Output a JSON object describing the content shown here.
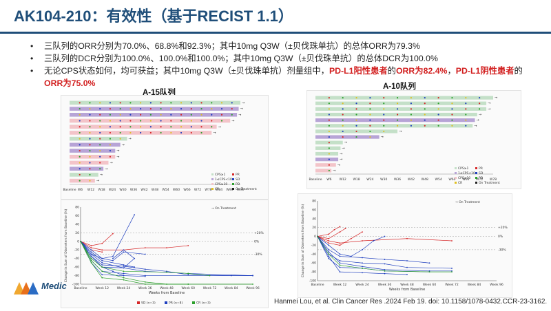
{
  "slide": {
    "title": "AK104-210：有效性（基于RECIST 1.1）",
    "bullets": [
      {
        "parts": [
          {
            "text": "三队列的ORR分别为70.0%、68.8%和92.3%；其中10mg Q3W（±贝伐珠单抗）的总体ORR为79.3%",
            "hl": false
          }
        ]
      },
      {
        "parts": [
          {
            "text": "三队列的DCR分别为100.0%、100.0%和100.0%；其中10mg Q3W（±贝伐珠单抗）的总体DCR为100.0%",
            "hl": false
          }
        ]
      },
      {
        "parts": [
          {
            "text": "无论CPS状态如何，均可获益；其中10mg Q3W（±贝伐珠单抗）剂量组中，",
            "hl": false
          },
          {
            "text": "PD-L1阳性患者",
            "hl": true
          },
          {
            "text": "的",
            "hl": false
          },
          {
            "text": "ORR为82.4%",
            "hl": true
          },
          {
            "text": "，",
            "hl": false
          },
          {
            "text": "PD-L1阴性患者",
            "hl": true
          },
          {
            "text": "的",
            "hl": false
          },
          {
            "text": "ORR为75.0%",
            "hl": true
          }
        ]
      }
    ],
    "bullet_glyph": "•",
    "citation": "Hanmei Lou, et al. Clin Cancer Res .2024 Feb 19. doi: 10.1158/1078-0432.CCR-23-3162.",
    "logo_text": "Medic"
  },
  "left_panel": {
    "cohort_title": "A-15队列",
    "swimmer": {
      "bars": [
        {
          "weeks": 101,
          "color": "#c4e0c8"
        },
        {
          "weeks": 100,
          "color": "#b7a4d6"
        },
        {
          "weeks": 99,
          "color": "#b7a4d6"
        },
        {
          "weeks": 95,
          "color": "#f3c4c9"
        },
        {
          "weeks": 87,
          "color": "#f3c4c9"
        },
        {
          "weeks": 84,
          "color": "#f3c4c9"
        },
        {
          "weeks": 34,
          "color": "#c4e0c8"
        },
        {
          "weeks": 30,
          "color": "#b7a4d6"
        },
        {
          "weeks": 27,
          "color": "#b7a4d6"
        },
        {
          "weeks": 27,
          "color": "#f3c4c9"
        },
        {
          "weeks": 23,
          "color": "#f3c4c9"
        },
        {
          "weeks": 20,
          "color": "#b7a4d6"
        },
        {
          "weeks": 17,
          "color": "#c4e0c8"
        },
        {
          "weeks": 15,
          "color": "#f3c4c9"
        }
      ],
      "x_ticks": [
        "Baseline",
        "W6",
        "W12",
        "W18",
        "W24",
        "W30",
        "W36",
        "W42",
        "W48",
        "W54",
        "W60",
        "W66",
        "W72",
        "W78",
        "W84",
        "W90",
        "W96"
      ],
      "legend": [
        "CPS≥1",
        "1≤CPS<10",
        "CPS≥10",
        "CR",
        "PR",
        "SD",
        "PD",
        "On Treatment"
      ]
    },
    "spider": {
      "y_axis_label": "Change in Sum of Diameters from Baseline (%)",
      "x_axis_label": "Weeks from Baseline",
      "y_ticks": [
        "80",
        "60",
        "40",
        "20",
        "0",
        "-20",
        "-40",
        "-60",
        "-80",
        "-100"
      ],
      "x_ticks": [
        "Baseline",
        "Week 12",
        "Week 24",
        "Week 36",
        "Week 48",
        "Week 60",
        "Week 72",
        "Week 84",
        "Week 96"
      ],
      "ref_lines": [
        "+20%",
        "0%",
        "-30%"
      ],
      "legend_top": "On Treatment",
      "legend_bottom": [
        "SD (n=3)",
        "PR (n=8)",
        "CR (n=3)"
      ]
    }
  },
  "right_panel": {
    "cohort_title": "A-10队列",
    "swimmer": {
      "bars": [
        {
          "weeks": 78,
          "color": "#c4e0c8"
        },
        {
          "weeks": 75,
          "color": "#c4e0c8"
        },
        {
          "weeks": 75,
          "color": "#c4e0c8"
        },
        {
          "weeks": 71,
          "color": "#c4e0c8"
        },
        {
          "weeks": 70,
          "color": "#b7a4d6"
        },
        {
          "weeks": 69,
          "color": "#c4e0c8"
        },
        {
          "weeks": 36,
          "color": "#c4e0c8"
        },
        {
          "weeks": 28,
          "color": "#b7a4d6"
        },
        {
          "weeks": 12,
          "color": "#c4e0c8"
        },
        {
          "weeks": 11,
          "color": "#c4e0c8"
        },
        {
          "weeks": 10,
          "color": "#c4e0c8"
        },
        {
          "weeks": 10,
          "color": "#b7a4d6"
        },
        {
          "weeks": 9,
          "color": "#f3c4c9"
        },
        {
          "weeks": 7,
          "color": "#f3c4c9"
        }
      ],
      "x_ticks": [
        "Baseline",
        "W6",
        "W12",
        "W18",
        "W24",
        "W30",
        "W36",
        "W42",
        "W48",
        "W54",
        "W60",
        "W66",
        "W72",
        "W78"
      ],
      "legend": [
        "CPS≥1",
        "1≤CPS<10",
        "CPS≥10",
        "CR",
        "PR",
        "SD",
        "PD",
        "On Treatment"
      ]
    },
    "spider": {
      "y_axis_label": "Change in Sum of Diameters from Baseline (%)",
      "x_axis_label": "Weeks from Baseline",
      "y_ticks": [
        "80",
        "60",
        "40",
        "20",
        "0",
        "-20",
        "-40",
        "-60",
        "-80",
        "-100"
      ],
      "x_ticks": [
        "Baseline",
        "Week 12",
        "Week 24",
        "Week 36",
        "Week 48",
        "Week 60",
        "Week 72",
        "Week 84",
        "Week 96"
      ],
      "ref_lines": [
        "+20%",
        "0%",
        "-30%"
      ],
      "legend_top": "On Treatment"
    }
  },
  "colors": {
    "title": "#1f4e79",
    "highlight": "#d21f1f",
    "sd": "#d62728",
    "pr": "#1f3fbf",
    "cr": "#2ca02c"
  }
}
